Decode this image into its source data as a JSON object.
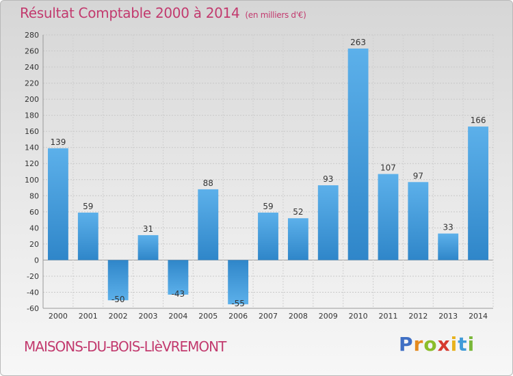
{
  "chart_data": {
    "type": "bar",
    "title": "Résultat Comptable 2000 à 2014",
    "subtitle": "(en milliers d'€)",
    "categories": [
      "2000",
      "2001",
      "2002",
      "2003",
      "2004",
      "2005",
      "2006",
      "2007",
      "2008",
      "2009",
      "2010",
      "2011",
      "2012",
      "2013",
      "2014"
    ],
    "values": [
      139,
      59,
      -50,
      31,
      -43,
      88,
      -55,
      59,
      52,
      93,
      263,
      107,
      97,
      33,
      166
    ],
    "ylim": [
      -60,
      280
    ],
    "yticks": [
      -60,
      -40,
      -20,
      0,
      20,
      40,
      60,
      80,
      100,
      120,
      140,
      160,
      180,
      200,
      220,
      240,
      260,
      280
    ],
    "grid": true,
    "xlabel": "",
    "ylabel": "",
    "bar_color": "#2f86c9",
    "bar_color_light": "#5cb0ea"
  },
  "footer": {
    "location": "MAISONS-DU-BOIS-LIèVREMONT",
    "brand_letters": [
      {
        "ch": "P",
        "color": "#3f6fc4"
      },
      {
        "ch": "r",
        "color": "#e48a1e"
      },
      {
        "ch": "o",
        "color": "#8bbd2a"
      },
      {
        "ch": "x",
        "color": "#d63a2f"
      },
      {
        "ch": "i",
        "color": "#e8b21d"
      },
      {
        "ch": "t",
        "color": "#3f9bd8"
      },
      {
        "ch": "i",
        "color": "#7ab83a"
      }
    ]
  },
  "colors": {
    "title": "#c23a6e"
  }
}
